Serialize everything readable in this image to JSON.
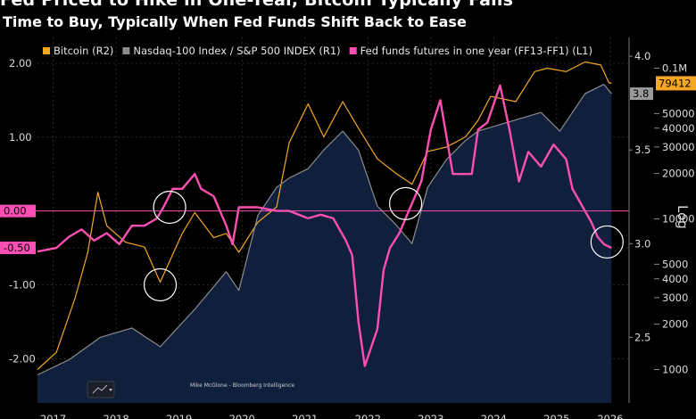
{
  "chart_data": {
    "type": "line",
    "title": "Fed Priced to Hike in One-Year, Bitcoin Typically Falls",
    "subtitle": "Time to Buy, Typically When Fed Funds Shift Back to Ease",
    "credit": "Mike McGlone - Bloomberg Intelligence",
    "log_label": "Log",
    "legend_position": "top-left",
    "series": [
      {
        "name": "Bitcoin (R2)",
        "color": "#f5a623",
        "axis": "R2 (log)",
        "x": [
          2017.0,
          2017.3,
          2017.6,
          2017.8,
          2017.96,
          2018.1,
          2018.4,
          2018.7,
          2018.95,
          2019.3,
          2019.5,
          2019.8,
          2020.0,
          2020.2,
          2020.5,
          2020.8,
          2021.0,
          2021.3,
          2021.55,
          2021.85,
          2022.1,
          2022.4,
          2022.7,
          2022.95,
          2023.2,
          2023.5,
          2023.8,
          2024.0,
          2024.2,
          2024.6,
          2024.9,
          2025.1,
          2025.4,
          2025.7,
          2025.95,
          2026.08,
          2026.12
        ],
        "y": [
          1000,
          1300,
          3000,
          6000,
          15000,
          9000,
          7000,
          6500,
          3800,
          8000,
          11000,
          7500,
          8000,
          6000,
          9500,
          12000,
          32000,
          58000,
          35000,
          60000,
          40000,
          25000,
          20000,
          17000,
          28000,
          30000,
          35000,
          45000,
          65000,
          60000,
          95000,
          100000,
          95000,
          110000,
          105000,
          80000,
          79412
        ],
        "last_label": "79412"
      },
      {
        "name": "Nasdaq-100 Index / S&P 500 INDEX (R1)",
        "color": "#8c8c8c",
        "fill": "#0f1f3c",
        "axis": "R1 (log)",
        "x": [
          2017.0,
          2017.5,
          2018.0,
          2018.5,
          2018.95,
          2019.5,
          2020.0,
          2020.2,
          2020.5,
          2020.8,
          2021.0,
          2021.3,
          2021.55,
          2021.85,
          2022.1,
          2022.4,
          2022.7,
          2022.95,
          2023.2,
          2023.5,
          2023.8,
          2024.0,
          2024.5,
          2025.0,
          2025.3,
          2025.7,
          2026.0,
          2026.12
        ],
        "y": [
          2.3,
          2.38,
          2.5,
          2.55,
          2.45,
          2.65,
          2.85,
          2.75,
          3.15,
          3.3,
          3.35,
          3.4,
          3.5,
          3.6,
          3.5,
          3.2,
          3.1,
          3.0,
          3.3,
          3.45,
          3.55,
          3.6,
          3.65,
          3.7,
          3.6,
          3.8,
          3.85,
          3.8
        ],
        "last_label": "3.8"
      },
      {
        "name": "Fed funds futures in one year (FF13-FF1) (L1)",
        "color": "#ff4fb4",
        "axis": "L1",
        "x": [
          2017.0,
          2017.3,
          2017.5,
          2017.7,
          2017.9,
          2018.1,
          2018.3,
          2018.5,
          2018.7,
          2018.9,
          2019.0,
          2019.15,
          2019.3,
          2019.5,
          2019.6,
          2019.8,
          2020.0,
          2020.1,
          2020.2,
          2020.5,
          2020.8,
          2021.0,
          2021.3,
          2021.5,
          2021.7,
          2021.9,
          2022.0,
          2022.1,
          2022.2,
          2022.4,
          2022.5,
          2022.6,
          2022.75,
          2022.9,
          2023.0,
          2023.1,
          2023.25,
          2023.4,
          2023.6,
          2023.75,
          2023.9,
          2024.0,
          2024.15,
          2024.35,
          2024.5,
          2024.65,
          2024.8,
          2025.0,
          2025.2,
          2025.4,
          2025.5,
          2025.7,
          2025.8,
          2025.9,
          2026.0,
          2026.12
        ],
        "y": [
          -0.55,
          -0.5,
          -0.35,
          -0.25,
          -0.4,
          -0.3,
          -0.45,
          -0.2,
          -0.2,
          -0.1,
          0.05,
          0.3,
          0.3,
          0.5,
          0.3,
          0.2,
          -0.2,
          -0.45,
          0.05,
          0.05,
          0.0,
          0.0,
          -0.1,
          -0.05,
          -0.1,
          -0.4,
          -0.6,
          -1.5,
          -2.1,
          -1.6,
          -0.8,
          -0.5,
          -0.3,
          0.0,
          0.2,
          0.4,
          1.1,
          1.5,
          0.5,
          0.5,
          0.5,
          1.1,
          1.2,
          1.7,
          1.1,
          0.4,
          0.8,
          0.6,
          0.9,
          0.7,
          0.3,
          0.0,
          -0.15,
          -0.35,
          -0.45,
          -0.5
        ],
        "last_label": "-0.50"
      }
    ],
    "reference_line": {
      "y": 0.0,
      "color": "#ff4fb4",
      "label": "0.00"
    },
    "left_axis": {
      "ylim": [
        -2.6,
        2.35
      ],
      "ticks": [
        2.0,
        1.0,
        0.0,
        -0.5,
        -1.0,
        -2.0
      ],
      "tick_labels": [
        "2.00",
        "1.00",
        "0.00",
        "-0.50",
        "-1.00",
        "-2.00"
      ]
    },
    "right_axis_1": {
      "ylim": [
        2.15,
        4.1
      ],
      "ticks": [
        4.0,
        3.5,
        3.0,
        2.5
      ],
      "tick_labels": [
        "4.0",
        "3.5",
        "3.0",
        "2.5"
      ]
    },
    "right_axis_2": {
      "ylim": [
        600,
        160000
      ],
      "ticks": [
        100000,
        50000,
        40000,
        30000,
        20000,
        10000,
        5000,
        4000,
        3000,
        2000,
        1000
      ],
      "tick_labels": [
        "0.1M",
        "50000",
        "40000",
        "30000",
        "20000",
        "10000",
        "5000",
        "4000",
        "3000",
        "2000",
        "1000"
      ]
    },
    "xlim": [
      2017.0,
      2026.4
    ],
    "x_ticks": [
      2017.25,
      2018.25,
      2019.25,
      2020.25,
      2021.25,
      2022.25,
      2023.25,
      2024.25,
      2025.25,
      2026.1
    ],
    "x_tick_labels": [
      "2017",
      "2018",
      "2019",
      "2020",
      "2021",
      "2022",
      "2023",
      "2024",
      "2025",
      "2026"
    ],
    "circle_annotations": [
      {
        "x": 2019.1,
        "y": 0.05
      },
      {
        "x": 2018.95,
        "y": -1.0
      },
      {
        "x": 2022.85,
        "y": 0.1
      },
      {
        "x": 2026.05,
        "y": -0.42
      }
    ],
    "grid": true
  }
}
